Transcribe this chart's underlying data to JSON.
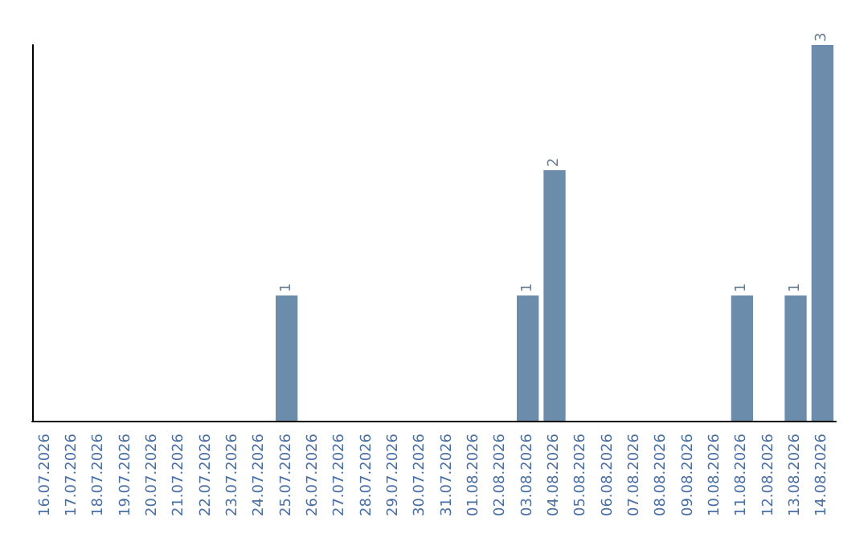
{
  "chart_data": {
    "type": "bar",
    "categories": [
      "16.07.2026",
      "17.07.2026",
      "18.07.2026",
      "19.07.2026",
      "20.07.2026",
      "21.07.2026",
      "22.07.2026",
      "23.07.2026",
      "24.07.2026",
      "25.07.2026",
      "26.07.2026",
      "27.07.2026",
      "28.07.2026",
      "29.07.2026",
      "30.07.2026",
      "31.07.2026",
      "01.08.2026",
      "02.08.2026",
      "03.08.2026",
      "04.08.2026",
      "05.08.2026",
      "06.08.2026",
      "07.08.2026",
      "08.08.2026",
      "09.08.2026",
      "10.08.2026",
      "11.08.2026",
      "12.08.2026",
      "13.08.2026",
      "14.08.2026"
    ],
    "values": [
      0,
      0,
      0,
      0,
      0,
      0,
      0,
      0,
      0,
      1,
      0,
      0,
      0,
      0,
      0,
      0,
      0,
      0,
      1,
      2,
      0,
      0,
      0,
      0,
      0,
      0,
      1,
      0,
      1,
      3
    ],
    "value_labels": [
      null,
      null,
      null,
      null,
      null,
      null,
      null,
      null,
      null,
      "1",
      null,
      null,
      null,
      null,
      null,
      null,
      null,
      null,
      "1",
      "2",
      null,
      null,
      null,
      null,
      null,
      null,
      "1",
      null,
      "1",
      "3"
    ],
    "color": "#6b8cab",
    "tick_labels": "x"
  }
}
